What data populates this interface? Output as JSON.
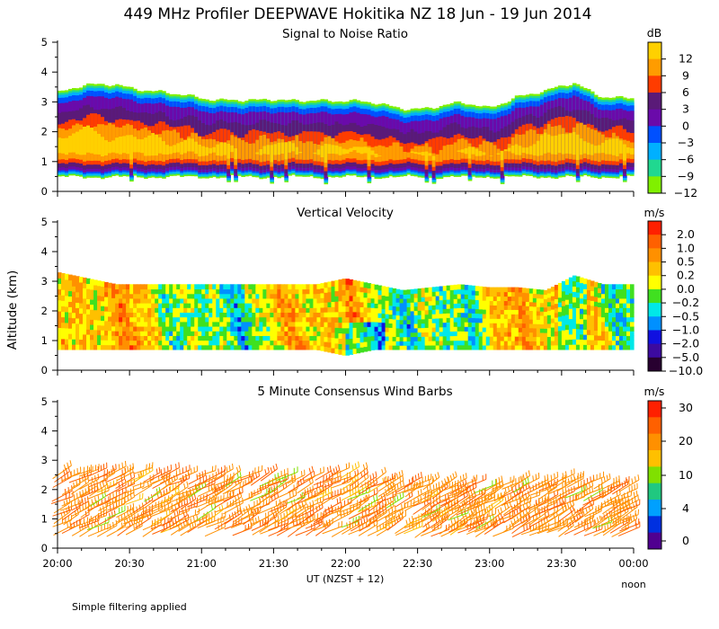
{
  "main_title": "449 MHz Profiler DEEPWAVE Hokitika NZ 18 Jun - 19 Jun 2014",
  "ylabel": "Altitude (km)",
  "xlabel": "UT  (NZST + 12)",
  "noon_label": "noon",
  "footer": "Simple filtering applied",
  "chart_data": [
    {
      "type": "heatmap",
      "title": "Signal to Noise Ratio",
      "units": "dB",
      "ylim": [
        0,
        5
      ],
      "yticks": [
        "0",
        "1",
        "2",
        "3",
        "4",
        "5"
      ],
      "xticks": [
        "20:00",
        "20:30",
        "21:00",
        "21:30",
        "22:00",
        "22:30",
        "23:00",
        "23:30",
        "00:00"
      ],
      "xlim_hours": [
        20,
        24
      ],
      "colorbar": {
        "labels": [
          "12",
          "9",
          "6",
          "3",
          "0",
          "−3",
          "−6",
          "−9",
          "−12"
        ],
        "colors": [
          "#ffd000",
          "#ff9c00",
          "#ff3c00",
          "#5a1a78",
          "#6a0aaa",
          "#0050ff",
          "#00b0ff",
          "#20d890",
          "#80f000"
        ]
      },
      "data_top_km": [
        3.2,
        3.4,
        3.5,
        3.3,
        3.1,
        3.0,
        3.0,
        2.9,
        2.9,
        3.0,
        2.9,
        2.8,
        2.7,
        2.7,
        2.8,
        2.7,
        3.1,
        3.2,
        3.5,
        3.1,
        3.0
      ],
      "data_bottom_km": [
        0.5,
        0.5,
        0.5,
        0.5,
        0.5,
        0.5,
        0.5,
        0.5,
        0.5,
        0.5,
        0.5,
        0.5,
        0.5,
        0.5,
        0.5,
        0.5,
        0.5,
        0.5,
        0.5,
        0.5,
        0.5
      ]
    },
    {
      "type": "heatmap",
      "title": "Vertical Velocity",
      "units": "m/s",
      "ylim": [
        0,
        5
      ],
      "yticks": [
        "0",
        "1",
        "2",
        "3",
        "4",
        "5"
      ],
      "colorbar": {
        "labels": [
          "2.0",
          "1.0",
          "0.5",
          "0.2",
          "0.0",
          "−0.2",
          "−0.5",
          "−1.0",
          "−2.0",
          "−5.0",
          "−10.0"
        ],
        "colors": [
          "#ff2000",
          "#ff6000",
          "#ff9000",
          "#ffc000",
          "#ffff00",
          "#40e020",
          "#00e8e8",
          "#0090ff",
          "#1010e0",
          "#3c0aa0",
          "#280030"
        ]
      },
      "data_top_km": [
        3.3,
        3.1,
        2.9,
        2.9,
        2.9,
        2.9,
        2.9,
        2.9,
        2.9,
        2.9,
        3.1,
        2.9,
        2.7,
        2.8,
        2.9,
        2.8,
        2.8,
        2.7,
        3.2,
        2.9,
        2.9
      ],
      "data_bottom_km": [
        0.7,
        0.7,
        0.7,
        0.7,
        0.7,
        0.7,
        0.7,
        0.7,
        0.7,
        0.7,
        0.5,
        0.7,
        0.7,
        0.7,
        0.7,
        0.7,
        0.7,
        0.7,
        0.7,
        0.7,
        0.7
      ]
    },
    {
      "type": "wind_barbs",
      "title": "5 Minute Consensus Wind Barbs",
      "units": "m/s",
      "ylim": [
        0,
        5
      ],
      "yticks": [
        "0",
        "1",
        "2",
        "3",
        "4",
        "5"
      ],
      "colorbar": {
        "labels": [
          "30",
          "20",
          "10",
          "4",
          "0"
        ],
        "colors": [
          "#ff2000",
          "#ff6000",
          "#ff9000",
          "#ffc000",
          "#80e000",
          "#20c880",
          "#00a0ff",
          "#0030e0",
          "#500090"
        ]
      },
      "data_top_km": [
        2.7,
        2.7,
        2.7,
        2.7,
        2.6,
        2.6,
        2.6,
        2.6,
        2.5,
        2.5,
        2.7,
        2.5,
        2.3,
        2.3,
        2.3,
        2.2,
        2.3,
        2.3,
        2.5,
        2.3,
        2.2
      ],
      "data_bottom_km": [
        0.5,
        0.5,
        0.5,
        0.5,
        0.5,
        0.5,
        0.5,
        0.5,
        0.5,
        0.5,
        0.5,
        0.5,
        0.5,
        0.5,
        0.5,
        0.5,
        0.5,
        0.5,
        0.5,
        0.5,
        0.5
      ]
    }
  ]
}
